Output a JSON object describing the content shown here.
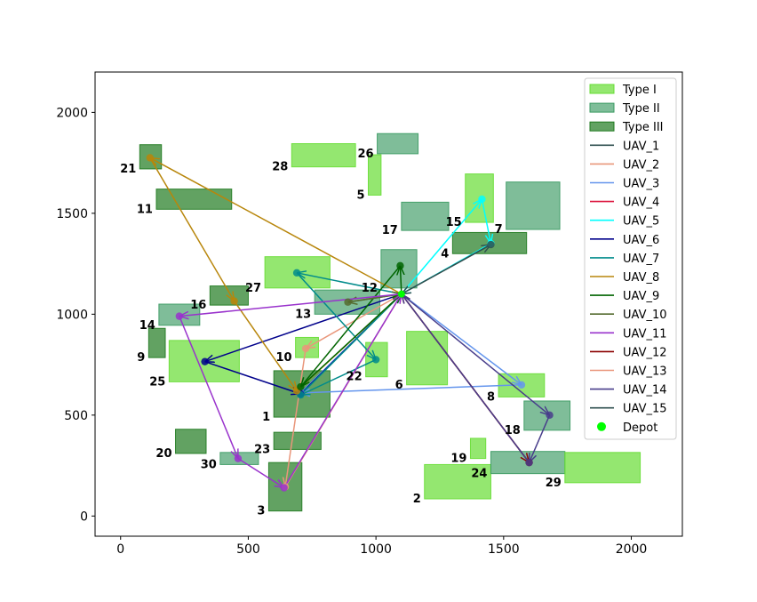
{
  "chart_data": {
    "type": "scatter",
    "title": "",
    "xlabel": "",
    "ylabel": "",
    "xlim": [
      -100,
      2200
    ],
    "ylim": [
      -100,
      2200
    ],
    "xticks": [
      "0",
      "500",
      "1000",
      "1500",
      "2000"
    ],
    "yticks": [
      "0",
      "500",
      "1000",
      "1500",
      "2000"
    ],
    "depot": {
      "x": 1100,
      "y": 1100
    },
    "region_types": [
      {
        "name": "Type I",
        "color": "#66dd33",
        "alpha": 0.7
      },
      {
        "name": "Type II",
        "color": "#3a9a62",
        "alpha": 0.65
      },
      {
        "name": "Type III",
        "color": "#1f7a1f",
        "alpha": 0.7
      }
    ],
    "regions": [
      {
        "id": "1",
        "type": "Type III",
        "x0": 600,
        "x1": 820,
        "y0": 490,
        "y1": 720
      },
      {
        "id": "2",
        "type": "Type I",
        "x0": 1190,
        "x1": 1450,
        "y0": 85,
        "y1": 255
      },
      {
        "id": "3",
        "type": "Type III",
        "x0": 580,
        "x1": 710,
        "y0": 25,
        "y1": 265
      },
      {
        "id": "4",
        "type": "Type III",
        "x0": 1300,
        "x1": 1590,
        "y0": 1300,
        "y1": 1405
      },
      {
        "id": "5",
        "type": "Type I",
        "x0": 970,
        "x1": 1020,
        "y0": 1590,
        "y1": 1790
      },
      {
        "id": "6",
        "type": "Type I",
        "x0": 1120,
        "x1": 1280,
        "y0": 650,
        "y1": 915
      },
      {
        "id": "7",
        "type": "Type II",
        "x0": 1510,
        "x1": 1720,
        "y0": 1420,
        "y1": 1655
      },
      {
        "id": "8",
        "type": "Type I",
        "x0": 1480,
        "x1": 1660,
        "y0": 590,
        "y1": 705
      },
      {
        "id": "9",
        "type": "Type III",
        "x0": 110,
        "x1": 175,
        "y0": 785,
        "y1": 930
      },
      {
        "id": "10",
        "type": "Type I",
        "x0": 685,
        "x1": 775,
        "y0": 785,
        "y1": 885
      },
      {
        "id": "11",
        "type": "Type III",
        "x0": 140,
        "x1": 435,
        "y0": 1520,
        "y1": 1620
      },
      {
        "id": "12",
        "type": "Type II",
        "x0": 1020,
        "x1": 1160,
        "y0": 1130,
        "y1": 1320
      },
      {
        "id": "13",
        "type": "Type II",
        "x0": 760,
        "x1": 1015,
        "y0": 1000,
        "y1": 1120
      },
      {
        "id": "14",
        "type": "Type II",
        "x0": 150,
        "x1": 310,
        "y0": 945,
        "y1": 1050
      },
      {
        "id": "15",
        "type": "Type I",
        "x0": 1350,
        "x1": 1460,
        "y0": 1455,
        "y1": 1695
      },
      {
        "id": "16",
        "type": "Type III",
        "x0": 350,
        "x1": 500,
        "y0": 1045,
        "y1": 1140
      },
      {
        "id": "17",
        "type": "Type II",
        "x0": 1100,
        "x1": 1285,
        "y0": 1415,
        "y1": 1555
      },
      {
        "id": "18",
        "type": "Type II",
        "x0": 1580,
        "x1": 1760,
        "y0": 425,
        "y1": 570
      },
      {
        "id": "19",
        "type": "Type I",
        "x0": 1370,
        "x1": 1430,
        "y0": 285,
        "y1": 385
      },
      {
        "id": "20",
        "type": "Type III",
        "x0": 215,
        "x1": 335,
        "y0": 310,
        "y1": 430
      },
      {
        "id": "21",
        "type": "Type III",
        "x0": 75,
        "x1": 160,
        "y0": 1720,
        "y1": 1840
      },
      {
        "id": "22",
        "type": "Type I",
        "x0": 960,
        "x1": 1045,
        "y0": 690,
        "y1": 860
      },
      {
        "id": "23",
        "type": "Type III",
        "x0": 600,
        "x1": 785,
        "y0": 330,
        "y1": 415
      },
      {
        "id": "24",
        "type": "Type II",
        "x0": 1450,
        "x1": 1740,
        "y0": 210,
        "y1": 320
      },
      {
        "id": "25",
        "type": "Type I",
        "x0": 190,
        "x1": 465,
        "y0": 665,
        "y1": 870
      },
      {
        "id": "26",
        "type": "Type II",
        "x0": 1005,
        "x1": 1165,
        "y0": 1795,
        "y1": 1895
      },
      {
        "id": "27",
        "type": "Type I",
        "x0": 565,
        "x1": 820,
        "y0": 1130,
        "y1": 1285
      },
      {
        "id": "28",
        "type": "Type I",
        "x0": 670,
        "x1": 920,
        "y0": 1730,
        "y1": 1845
      },
      {
        "id": "29",
        "type": "Type I",
        "x0": 1740,
        "x1": 2035,
        "y0": 165,
        "y1": 315
      },
      {
        "id": "30",
        "type": "Type II",
        "x0": 390,
        "x1": 540,
        "y0": 255,
        "y1": 315
      }
    ],
    "series": [
      {
        "name": "UAV_1",
        "color": "#2f4f4f",
        "points": [
          [
            1100,
            1100
          ],
          [
            1100,
            1100
          ]
        ]
      },
      {
        "name": "UAV_2",
        "color": "#e9967a",
        "points": [
          [
            1100,
            1100
          ],
          [
            725,
            830
          ],
          [
            645,
            145
          ],
          [
            1100,
            1100
          ]
        ]
      },
      {
        "name": "UAV_3",
        "color": "#6495ed",
        "points": [
          [
            1100,
            1100
          ],
          [
            1570,
            650
          ],
          [
            705,
            610
          ],
          [
            1100,
            1100
          ]
        ]
      },
      {
        "name": "UAV_4",
        "color": "#dc143c",
        "points": [
          [
            1100,
            1100
          ],
          [
            1100,
            1100
          ]
        ]
      },
      {
        "name": "UAV_5",
        "color": "#00ffff",
        "points": [
          [
            1100,
            1100
          ],
          [
            1415,
            1570
          ],
          [
            1450,
            1350
          ],
          [
            1100,
            1100
          ]
        ]
      },
      {
        "name": "UAV_6",
        "color": "#00008b",
        "points": [
          [
            1100,
            1100
          ],
          [
            330,
            765
          ],
          [
            705,
            605
          ],
          [
            1100,
            1100
          ]
        ]
      },
      {
        "name": "UAV_7",
        "color": "#008b8b",
        "points": [
          [
            1100,
            1100
          ],
          [
            690,
            1205
          ],
          [
            1000,
            775
          ],
          [
            705,
            600
          ],
          [
            1100,
            1100
          ]
        ]
      },
      {
        "name": "UAV_8",
        "color": "#b8860b",
        "points": [
          [
            1100,
            1100
          ],
          [
            115,
            1775
          ],
          [
            445,
            1065
          ],
          [
            690,
            620
          ],
          [
            1100,
            1100
          ]
        ]
      },
      {
        "name": "UAV_9",
        "color": "#006400",
        "points": [
          [
            1100,
            1100
          ],
          [
            1095,
            1240
          ],
          [
            705,
            640
          ],
          [
            1100,
            1100
          ]
        ]
      },
      {
        "name": "UAV_10",
        "color": "#556b2f",
        "points": [
          [
            1100,
            1100
          ],
          [
            890,
            1060
          ],
          [
            1100,
            1100
          ]
        ]
      },
      {
        "name": "UAV_11",
        "color": "#9932cc",
        "points": [
          [
            1100,
            1100
          ],
          [
            230,
            990
          ],
          [
            460,
            285
          ],
          [
            640,
            140
          ],
          [
            1100,
            1100
          ]
        ]
      },
      {
        "name": "UAV_12",
        "color": "#8b0000",
        "points": [
          [
            1100,
            1100
          ],
          [
            1600,
            265
          ],
          [
            1100,
            1100
          ]
        ]
      },
      {
        "name": "UAV_13",
        "color": "#e9967a",
        "points": [
          [
            1100,
            1100
          ],
          [
            1100,
            1100
          ]
        ]
      },
      {
        "name": "UAV_14",
        "color": "#483d8b",
        "points": [
          [
            1100,
            1100
          ],
          [
            1680,
            500
          ],
          [
            1600,
            265
          ],
          [
            1100,
            1100
          ]
        ]
      },
      {
        "name": "UAV_15",
        "color": "#2f4f4f",
        "points": [
          [
            1100,
            1100
          ],
          [
            1450,
            1345
          ],
          [
            1100,
            1100
          ]
        ]
      }
    ],
    "legend": {
      "placement": "top-right",
      "entries": [
        "Type I",
        "Type II",
        "Type III",
        "UAV_1",
        "UAV_2",
        "UAV_3",
        "UAV_4",
        "UAV_5",
        "UAV_6",
        "UAV_7",
        "UAV_8",
        "UAV_9",
        "UAV_10",
        "UAV_11",
        "UAV_12",
        "UAV_13",
        "UAV_14",
        "UAV_15",
        "Depot"
      ],
      "depot_label": "Depot",
      "depot_color": "#00ff00"
    },
    "grid": false
  }
}
